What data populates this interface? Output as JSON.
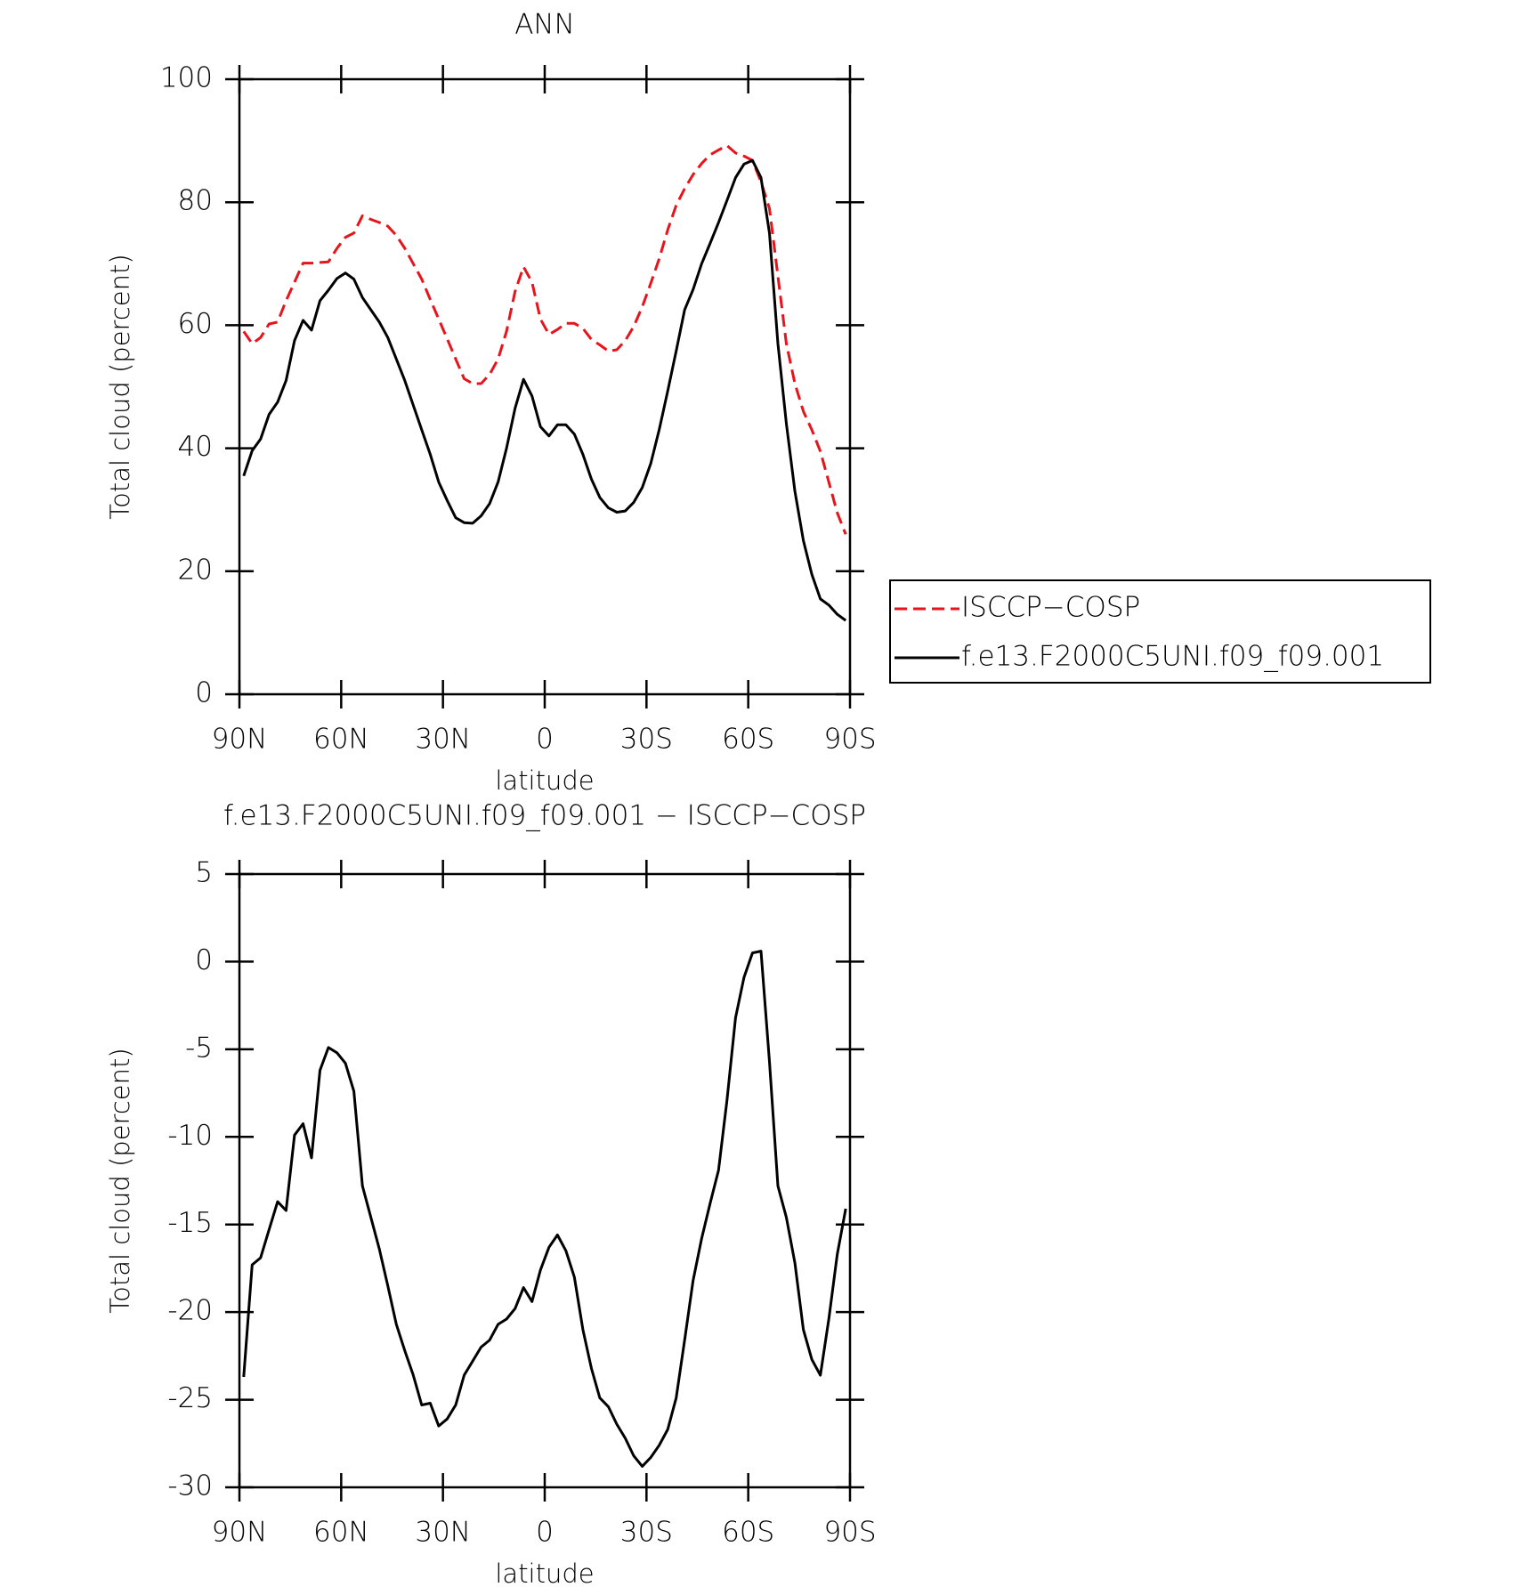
{
  "chart_data": [
    {
      "type": "line",
      "title": "ANN",
      "xlabel": "latitude",
      "ylabel": "Total cloud (percent)",
      "xlim": [
        90,
        -90
      ],
      "xticks": [
        {
          "value": 90,
          "label": "90N"
        },
        {
          "value": 60,
          "label": "60N"
        },
        {
          "value": 30,
          "label": "30N"
        },
        0,
        {
          "value": -30,
          "label": "30S"
        },
        {
          "value": -60,
          "label": "60S"
        },
        {
          "value": -90,
          "label": "90S"
        }
      ],
      "ylim": [
        0,
        100
      ],
      "yticks": [
        0,
        20,
        40,
        60,
        80,
        100
      ],
      "legend": "right",
      "x": [
        88.75,
        86.25,
        83.75,
        81.25,
        78.75,
        76.25,
        73.75,
        71.25,
        68.75,
        66.25,
        63.75,
        61.25,
        58.75,
        56.25,
        53.75,
        51.25,
        48.75,
        46.25,
        43.75,
        41.25,
        38.75,
        36.25,
        33.75,
        31.25,
        28.75,
        26.25,
        23.75,
        21.25,
        18.75,
        16.25,
        13.75,
        11.25,
        8.75,
        6.25,
        3.75,
        1.25,
        -1.25,
        -3.75,
        -6.25,
        -8.75,
        -11.25,
        -13.75,
        -16.25,
        -18.75,
        -21.25,
        -23.75,
        -26.25,
        -28.75,
        -31.25,
        -33.75,
        -36.25,
        -38.75,
        -41.25,
        -43.75,
        -46.25,
        -48.75,
        -51.25,
        -53.75,
        -56.25,
        -58.75,
        -61.25,
        -63.75,
        -66.25,
        -68.75,
        -71.25,
        -73.75,
        -76.25,
        -78.75,
        -81.25,
        -83.75,
        -86.25,
        -88.75
      ],
      "series": [
        {
          "name": "ISCCP−COSP",
          "color": "#e8131b",
          "dash": "dashed",
          "values": [
            59,
            57,
            58,
            60.2,
            60.5,
            64,
            67,
            70.1,
            70.1,
            70.2,
            70.3,
            72.5,
            74.3,
            75,
            77.8,
            77.2,
            76.7,
            76.1,
            74.6,
            72.5,
            70,
            67.5,
            64.2,
            61,
            57.8,
            54.5,
            51.3,
            50.5,
            50.5,
            52,
            54.5,
            59,
            65.5,
            69.5,
            67,
            61,
            58.5,
            59.3,
            60.3,
            60.3,
            59.5,
            57.7,
            56.8,
            55.8,
            56,
            57.5,
            59.8,
            63,
            66.8,
            70.8,
            75.5,
            79.5,
            82.2,
            84.5,
            86.3,
            87.7,
            88.5,
            89.2,
            88,
            87.5,
            86.8,
            83.3,
            79,
            68,
            57,
            50.5,
            46,
            43,
            39.5,
            34.5,
            29.5,
            26
          ]
        },
        {
          "name": "f.e13.F2000C5UNI.f09_f09.001",
          "color": "#000000",
          "dash": "solid",
          "values": [
            35.5,
            39.6,
            41.5,
            45.5,
            47.5,
            51,
            57.5,
            60.8,
            59.2,
            64,
            65.7,
            67.6,
            68.5,
            67.5,
            64.5,
            62.5,
            60.5,
            58,
            54.5,
            51,
            47,
            43,
            39,
            34.5,
            31.5,
            28.7,
            27.9,
            27.8,
            29,
            31,
            34.5,
            40,
            46.5,
            51.2,
            48.5,
            43.5,
            42,
            43.8,
            43.8,
            42.3,
            39,
            35,
            32,
            30.3,
            29.6,
            29.8,
            31.2,
            33.6,
            37.5,
            43,
            49.3,
            55.8,
            62.5,
            65.8,
            70,
            73.3,
            76.7,
            80.3,
            84,
            86.2,
            86.8,
            84,
            75,
            57,
            44,
            33,
            25,
            19.5,
            15.5,
            14.5,
            13,
            12
          ]
        }
      ]
    },
    {
      "type": "line",
      "title": "f.e13.F2000C5UNI.f09_f09.001 − ISCCP−COSP",
      "xlabel": "latitude",
      "ylabel": "Total cloud (percent)",
      "xlim": [
        90,
        -90
      ],
      "xticks": [
        {
          "value": 90,
          "label": "90N"
        },
        {
          "value": 60,
          "label": "60N"
        },
        {
          "value": 30,
          "label": "30N"
        },
        0,
        {
          "value": -30,
          "label": "30S"
        },
        {
          "value": -60,
          "label": "60S"
        },
        {
          "value": -90,
          "label": "90S"
        }
      ],
      "ylim": [
        -30,
        5
      ],
      "yticks": [
        -30,
        -25,
        -20,
        -15,
        -10,
        -5,
        0,
        5
      ],
      "x": [
        88.75,
        86.25,
        83.75,
        81.25,
        78.75,
        76.25,
        73.75,
        71.25,
        68.75,
        66.25,
        63.75,
        61.25,
        58.75,
        56.25,
        53.75,
        51.25,
        48.75,
        46.25,
        43.75,
        41.25,
        38.75,
        36.25,
        33.75,
        31.25,
        28.75,
        26.25,
        23.75,
        21.25,
        18.75,
        16.25,
        13.75,
        11.25,
        8.75,
        6.25,
        3.75,
        1.25,
        -1.25,
        -3.75,
        -6.25,
        -8.75,
        -11.25,
        -13.75,
        -16.25,
        -18.75,
        -21.25,
        -23.75,
        -26.25,
        -28.75,
        -31.25,
        -33.75,
        -36.25,
        -38.75,
        -41.25,
        -43.75,
        -46.25,
        -48.75,
        -51.25,
        -53.75,
        -56.25,
        -58.75,
        -61.25,
        -63.75,
        -66.25,
        -68.75,
        -71.25,
        -73.75,
        -76.25,
        -78.75,
        -81.25,
        -83.75,
        -86.25,
        -88.75
      ],
      "color": "#000000",
      "values": [
        -23.7,
        -17.3,
        -16.9,
        -15.3,
        -13.7,
        -14.2,
        -9.9,
        -9.25,
        -11.2,
        -6.2,
        -4.9,
        -5.2,
        -5.8,
        -7.4,
        -12.8,
        -14.6,
        -16.4,
        -18.5,
        -20.7,
        -22.2,
        -23.6,
        -25.3,
        -25.2,
        -26.5,
        -26.1,
        -25.3,
        -23.6,
        -22.8,
        -22,
        -21.6,
        -20.7,
        -20.4,
        -19.8,
        -18.6,
        -19.4,
        -17.6,
        -16.3,
        -15.6,
        -16.5,
        -18,
        -21,
        -23.2,
        -24.9,
        -25.4,
        -26.4,
        -27.2,
        -28.2,
        -28.8,
        -28.3,
        -27.6,
        -26.7,
        -24.9,
        -21.6,
        -18.2,
        -15.8,
        -13.8,
        -11.9,
        -7.9,
        -3.2,
        -0.9,
        0.5,
        0.6,
        -5.7,
        -12.8,
        -14.6,
        -17.2,
        -21,
        -22.7,
        -23.6,
        -20.4,
        -16.7,
        -14.1
      ]
    }
  ]
}
